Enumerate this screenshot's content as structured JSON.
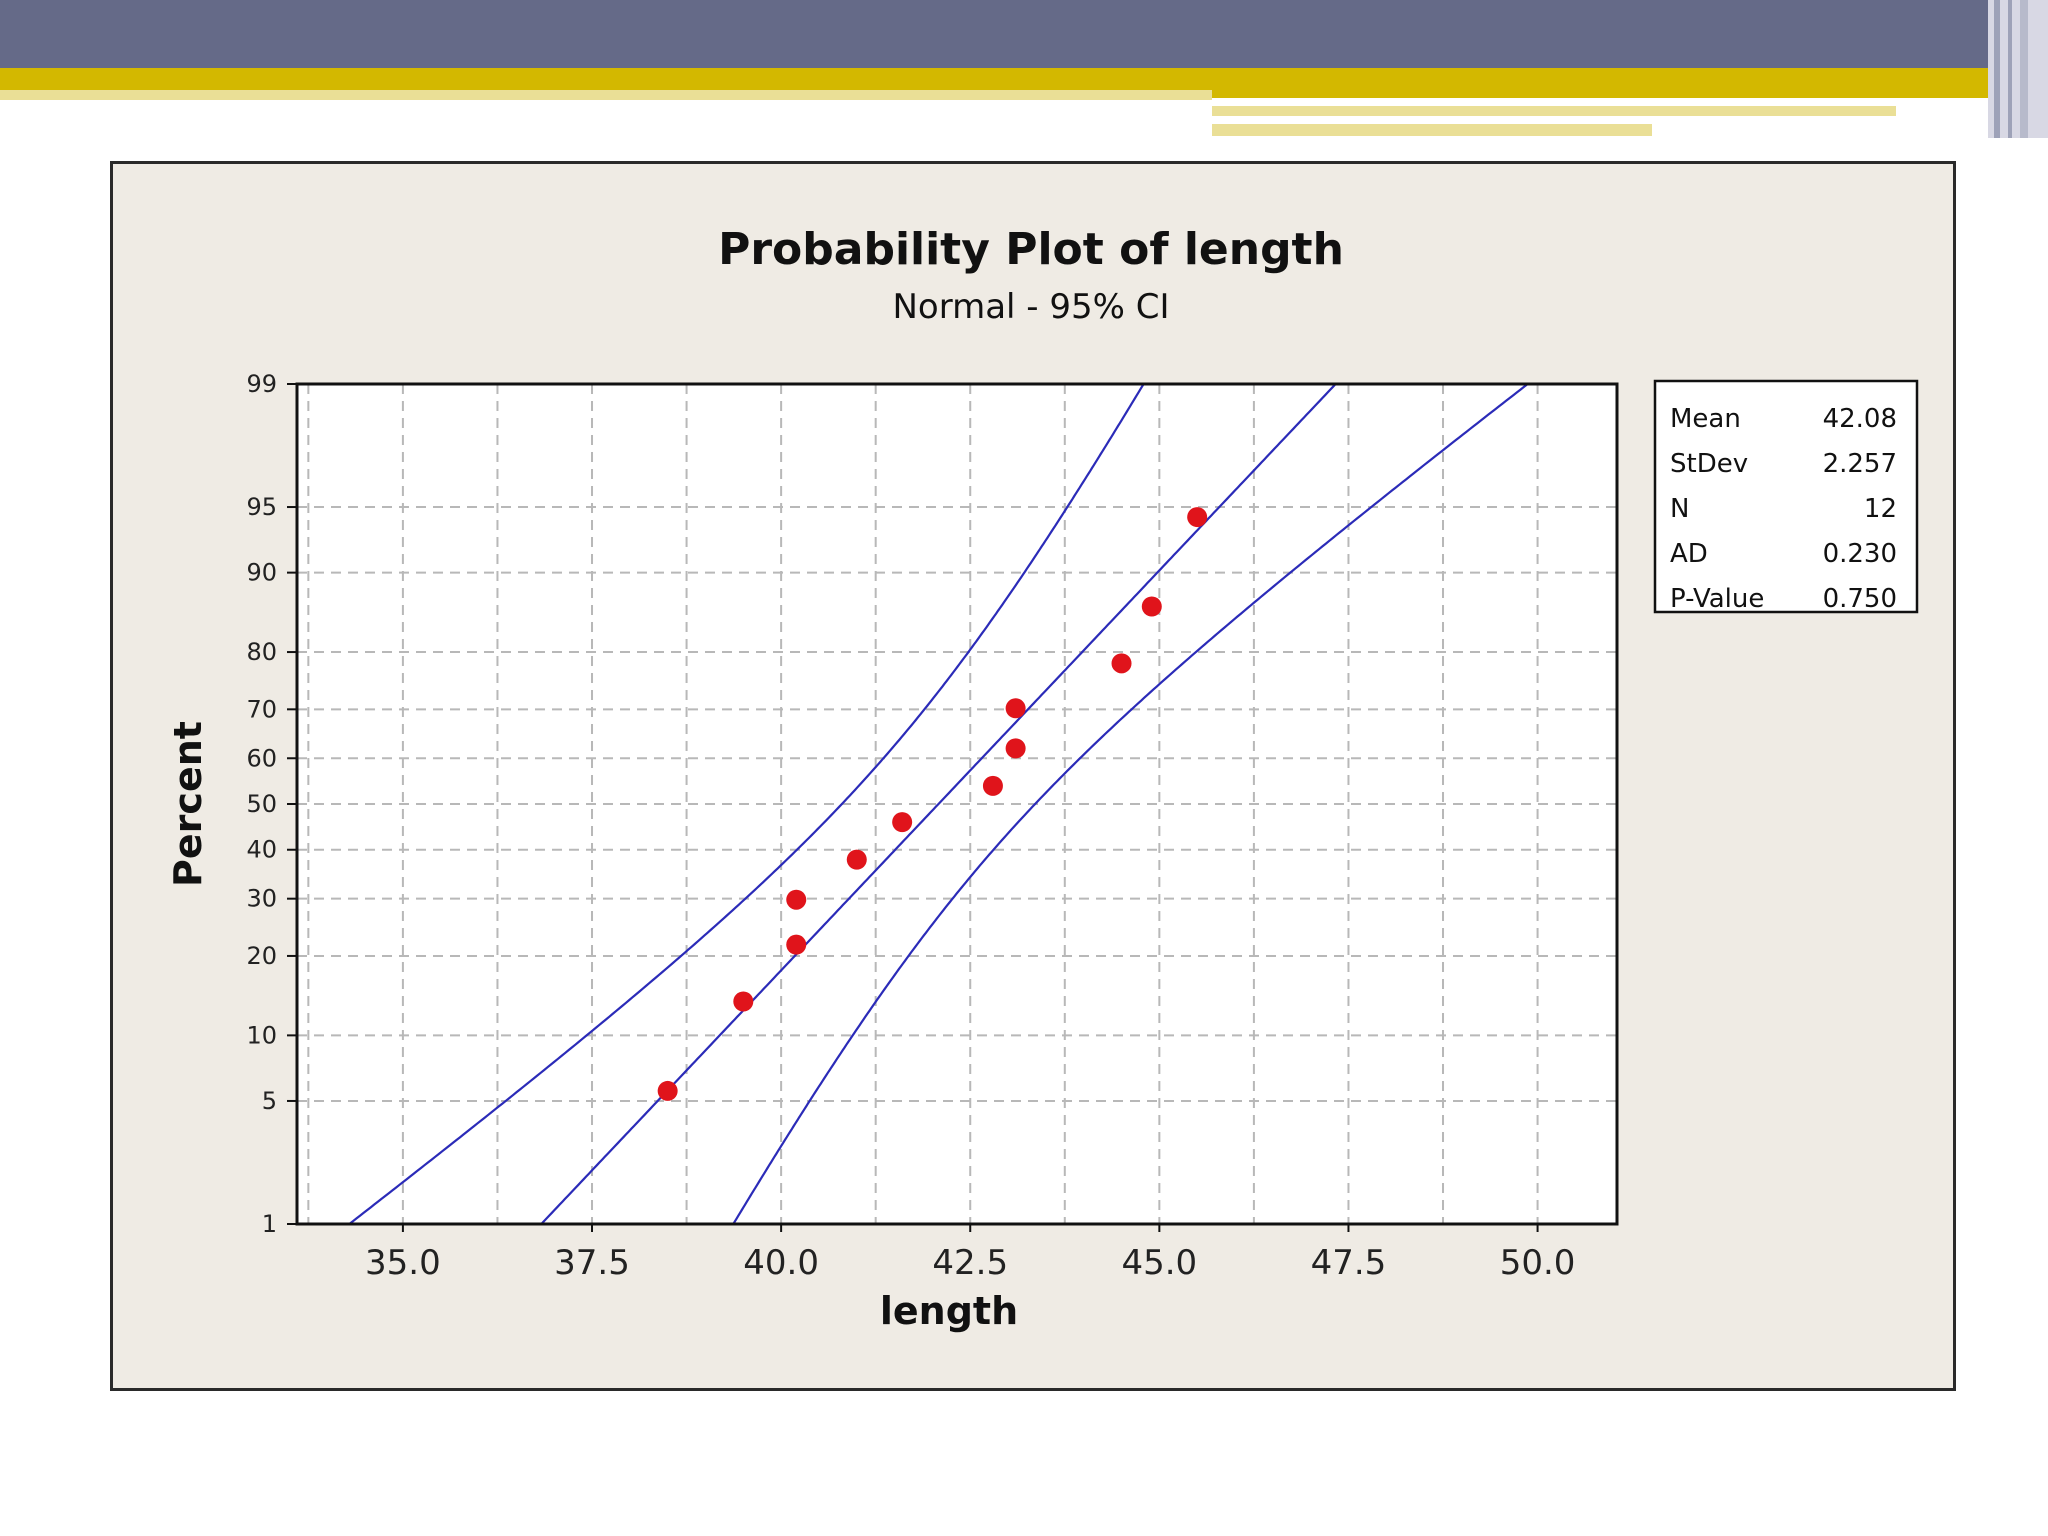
{
  "theme": {
    "header_bar": "#656a88",
    "accent": "#d3b800",
    "accent_light": "#eadf96",
    "panel_bg": "#efebe4",
    "plot_bg": "#ffffff",
    "ci_line": "#2b2bb8",
    "point": "#e0141b",
    "grid": "#b8b8b8"
  },
  "chart_data": {
    "type": "scatter",
    "title": "Probability Plot of length",
    "subtitle": "Normal - 95% CI",
    "xlabel": "length",
    "ylabel": "Percent",
    "xlim": [
      33.6,
      51.05
    ],
    "ylim": [
      1,
      99
    ],
    "y_scale": "normal-probability",
    "grid": true,
    "x_ticks": [
      35.0,
      37.5,
      40.0,
      42.5,
      45.0,
      47.5,
      50.0
    ],
    "x_tick_labels": [
      "35.0",
      "37.5",
      "40.0",
      "42.5",
      "45.0",
      "47.5",
      "50.0"
    ],
    "x_minor_gridlines": [
      33.75,
      36.25,
      38.75,
      41.25,
      43.75,
      46.25,
      48.75
    ],
    "y_ticks": [
      1,
      5,
      10,
      20,
      30,
      40,
      50,
      60,
      70,
      80,
      90,
      95,
      99
    ],
    "y_tick_labels": [
      "1",
      "5",
      "10",
      "20",
      "30",
      "40",
      "50",
      "60",
      "70",
      "80",
      "90",
      "95",
      "99"
    ],
    "points": [
      {
        "x": 38.5,
        "y": 5.6
      },
      {
        "x": 39.5,
        "y": 13.7
      },
      {
        "x": 40.2,
        "y": 21.8
      },
      {
        "x": 40.2,
        "y": 29.8
      },
      {
        "x": 41.0,
        "y": 37.9
      },
      {
        "x": 41.6,
        "y": 46.0
      },
      {
        "x": 42.8,
        "y": 54.0
      },
      {
        "x": 43.1,
        "y": 62.1
      },
      {
        "x": 43.1,
        "y": 70.2
      },
      {
        "x": 44.5,
        "y": 78.2
      },
      {
        "x": 44.9,
        "y": 86.3
      },
      {
        "x": 45.5,
        "y": 94.4
      }
    ],
    "fit": {
      "mean": 42.08,
      "stdev": 2.257,
      "n": 12
    },
    "ci_level": 0.95,
    "legend_position": "right",
    "stats": [
      {
        "label": "Mean",
        "value": "42.08"
      },
      {
        "label": "StDev",
        "value": "2.257"
      },
      {
        "label": "N",
        "value": "12"
      },
      {
        "label": "AD",
        "value": "0.230"
      },
      {
        "label": "P-Value",
        "value": "0.750"
      }
    ]
  }
}
